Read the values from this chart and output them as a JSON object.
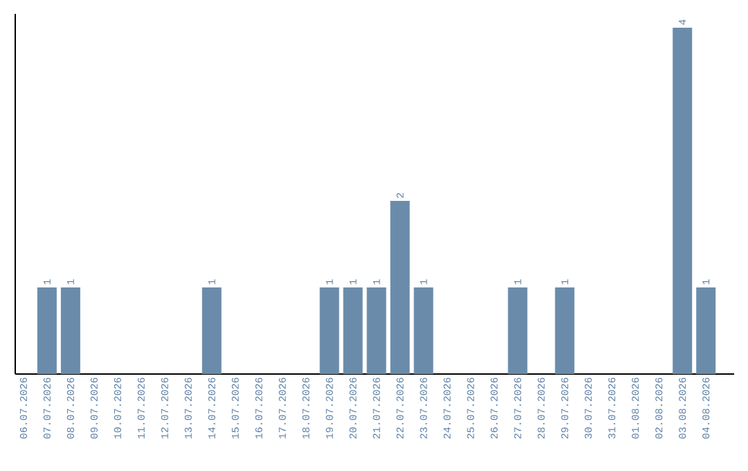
{
  "chart_data": {
    "type": "bar",
    "categories": [
      "06.07.2026",
      "07.07.2026",
      "08.07.2026",
      "09.07.2026",
      "10.07.2026",
      "11.07.2026",
      "12.07.2026",
      "13.07.2026",
      "14.07.2026",
      "15.07.2026",
      "16.07.2026",
      "17.07.2026",
      "18.07.2026",
      "19.07.2026",
      "20.07.2026",
      "21.07.2026",
      "22.07.2026",
      "23.07.2026",
      "24.07.2026",
      "25.07.2026",
      "26.07.2026",
      "27.07.2026",
      "28.07.2026",
      "29.07.2026",
      "30.07.2026",
      "31.07.2026",
      "01.08.2026",
      "02.08.2026",
      "03.08.2026",
      "04.08.2026"
    ],
    "values": [
      0,
      1,
      1,
      0,
      0,
      0,
      0,
      0,
      1,
      0,
      0,
      0,
      0,
      1,
      1,
      1,
      2,
      1,
      0,
      0,
      0,
      1,
      0,
      1,
      0,
      0,
      0,
      0,
      4,
      1
    ],
    "value_labels": [
      null,
      "1",
      "1",
      null,
      null,
      null,
      null,
      null,
      "1",
      null,
      null,
      null,
      null,
      "1",
      "1",
      "1",
      "2",
      "1",
      null,
      null,
      null,
      "1",
      null,
      "1",
      null,
      null,
      null,
      null,
      "4",
      "1"
    ],
    "color": "#6a8caa",
    "ylim": [
      0,
      4.16
    ],
    "tick_labels": "x"
  }
}
